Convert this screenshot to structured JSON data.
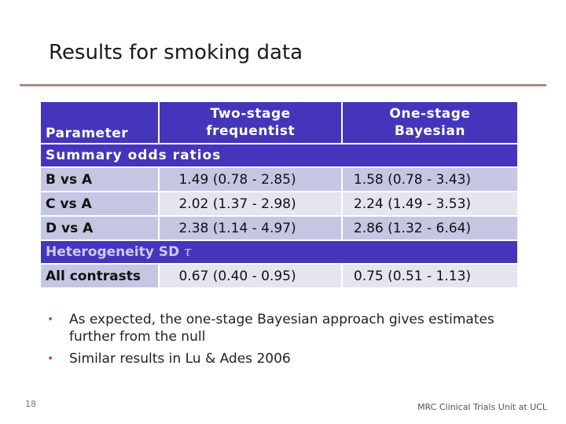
{
  "slide": {
    "title": "Results for smoking data",
    "page_number": "18",
    "footer": "MRC Clinical Trials Unit at UCL"
  },
  "table": {
    "headers": {
      "parameter": "Parameter",
      "two_stage_line1": "Two-stage",
      "two_stage_line2": "frequentist",
      "one_stage_line1": "One-stage",
      "one_stage_line2": "Bayesian"
    },
    "section1": "Summary odds ratios",
    "rows": [
      {
        "label": "B vs A",
        "two_stage": "1.49 (0.78 - 2.85)",
        "one_stage": "1.58 (0.78 - 3.43)"
      },
      {
        "label": "C vs A",
        "two_stage": "2.02 (1.37 - 2.98)",
        "one_stage": "2.24 (1.49 - 3.53)"
      },
      {
        "label": "D vs A",
        "two_stage": "2.38 (1.14 - 4.97)",
        "one_stage": "2.86 (1.32 - 6.64)"
      }
    ],
    "section2": "Heterogeneity SD",
    "section2_symbol": "τ",
    "het_row": {
      "label": "All contrasts",
      "two_stage": "0.67 (0.40 - 0.95)",
      "one_stage": "0.75 (0.51 - 1.13)"
    }
  },
  "bullets": [
    "As expected, the one-stage Bayesian approach gives estimates further from the null",
    "Similar results in Lu & Ades 2006"
  ],
  "colors": {
    "header_bg": "#4535ba",
    "row_light": "#e4e5f1",
    "row_mid": "#c5c6e2",
    "rule": "#a68b82",
    "bullet": "#c0504d"
  }
}
